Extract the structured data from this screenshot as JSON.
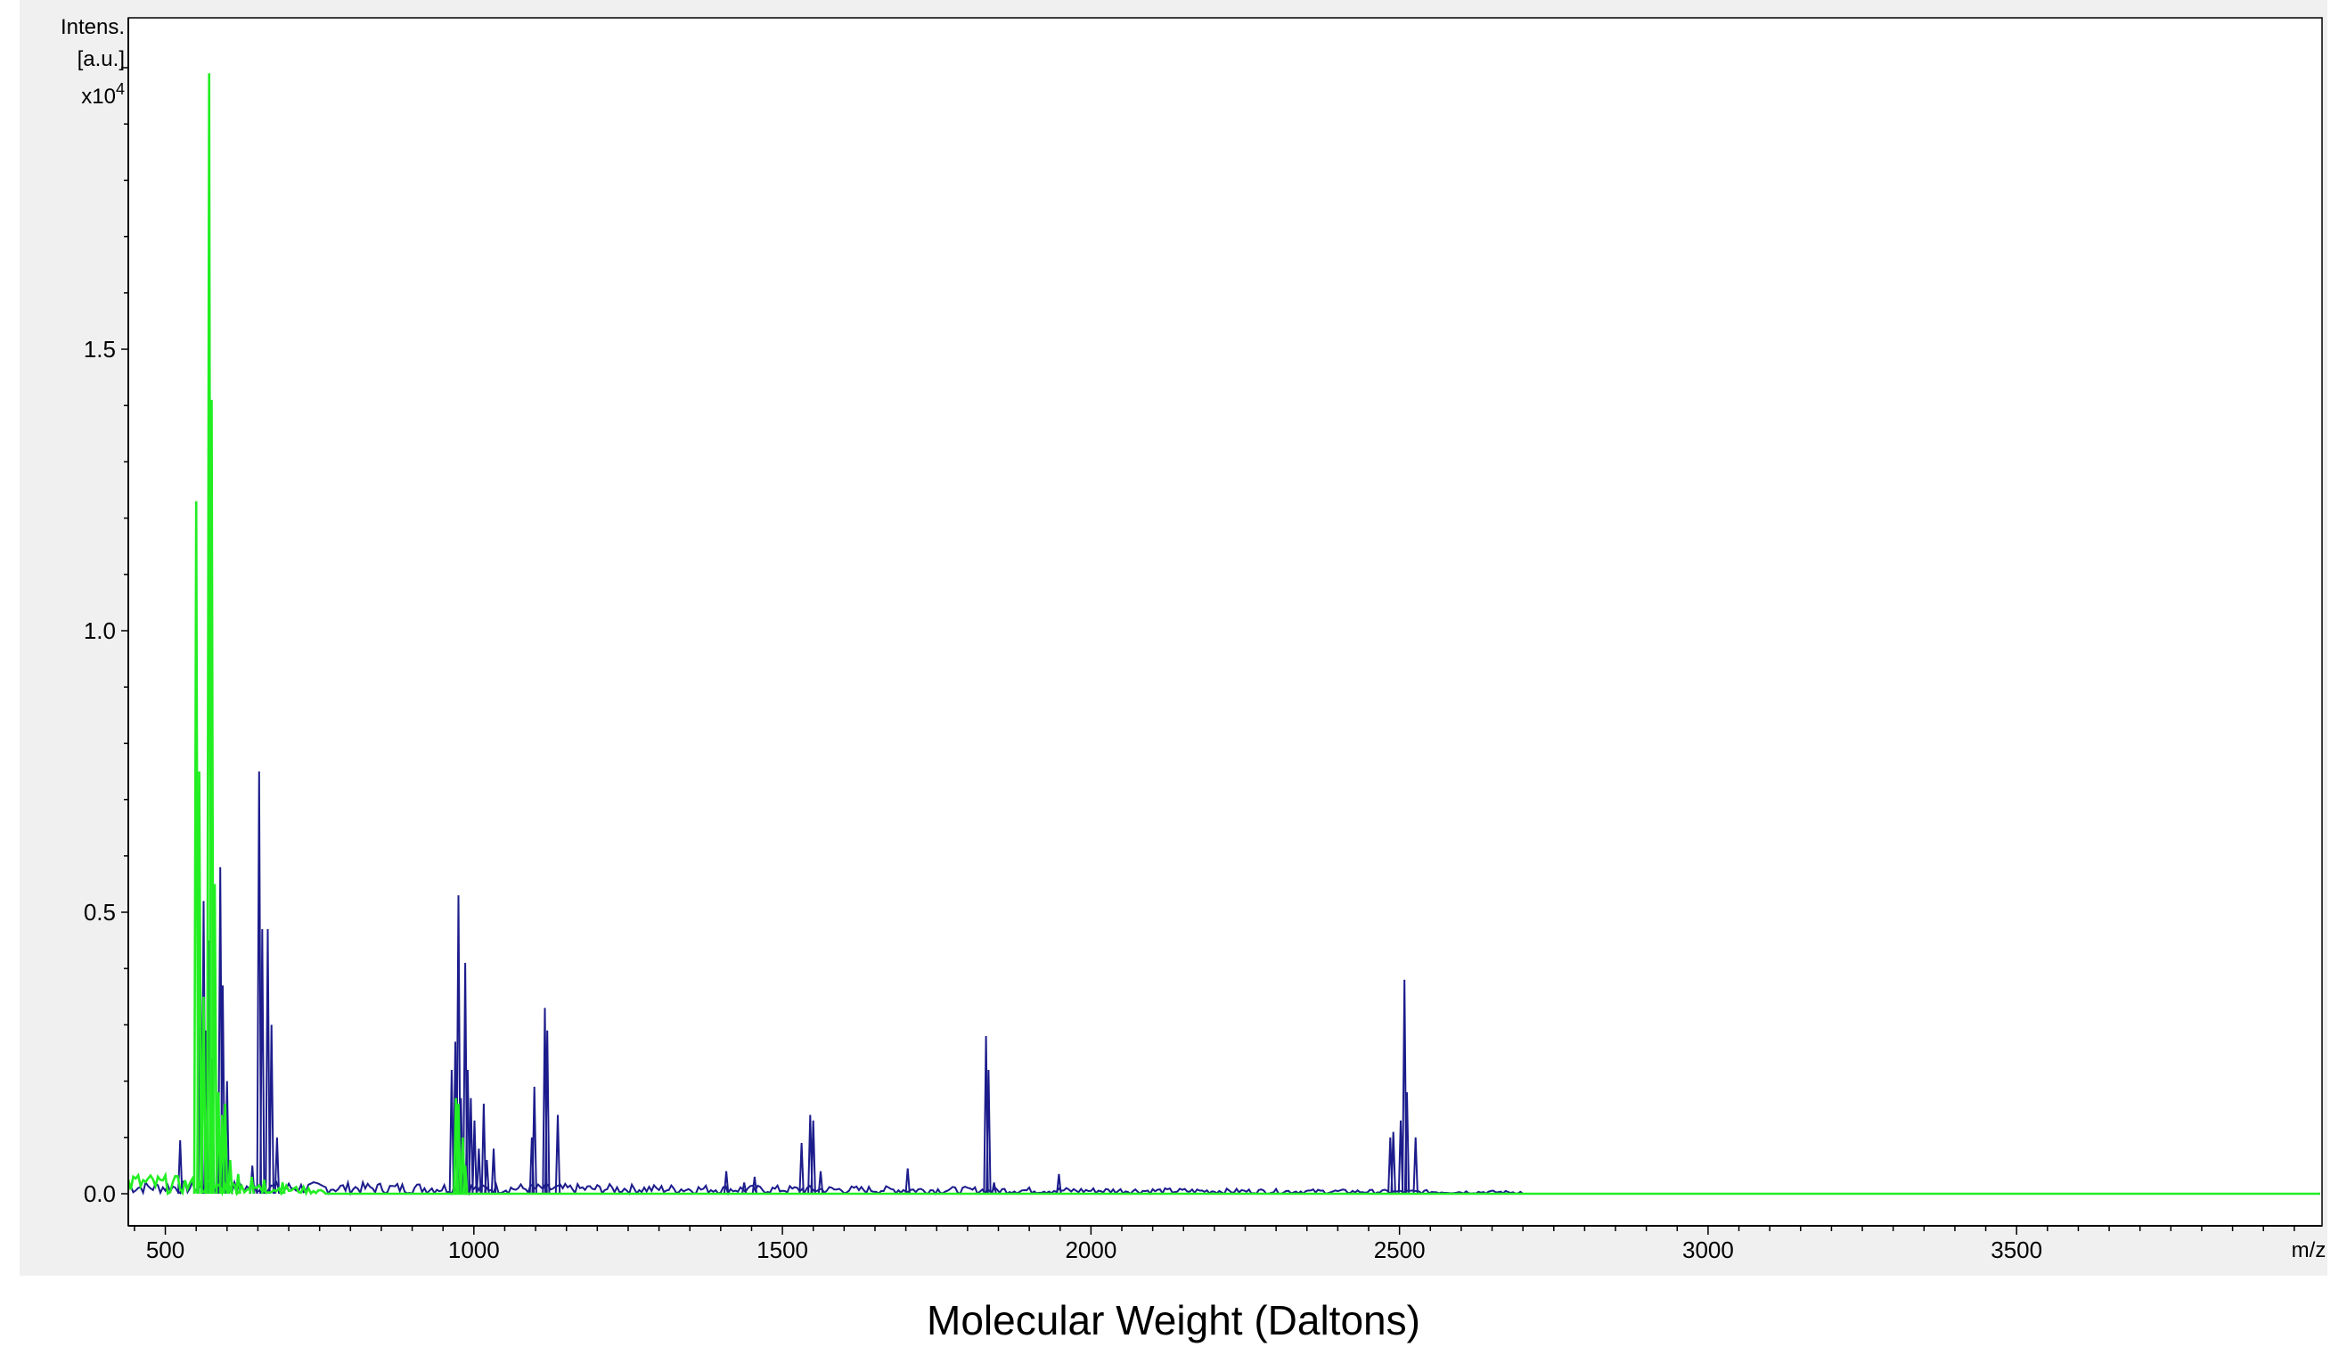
{
  "caption": "Molecular Weight (Daltons)",
  "chart_data": {
    "type": "line",
    "ylabel_lines": [
      "Intens.",
      "[a.u.]"
    ],
    "y_multiplier_base": "x10",
    "y_multiplier_exp": "4",
    "xlabel": "m/z",
    "xlim": [
      440,
      3995
    ],
    "ylim": [
      0,
      2.0
    ],
    "x_ticks": [
      500,
      1000,
      1500,
      2000,
      2500,
      3000,
      3500
    ],
    "y_ticks": [
      0.0,
      0.5,
      1.0,
      1.5
    ],
    "y_tick_labels": [
      "0.0",
      "0.5",
      "1.0",
      "1.5"
    ],
    "grid": false,
    "colors": {
      "series_blue": "#1c1c8c",
      "series_green": "#22ee22",
      "axis": "#000000",
      "background": "#ffffff",
      "panel": "#f0f0f0"
    },
    "series": [
      {
        "key": "blue",
        "color": "#1c1c8c",
        "peaks": [
          [
            524,
            0.095
          ],
          [
            557,
            0.37
          ],
          [
            562,
            0.52
          ],
          [
            566,
            0.29
          ],
          [
            570,
            0.45
          ],
          [
            576,
            0.24
          ],
          [
            589,
            0.58
          ],
          [
            593,
            0.37
          ],
          [
            600,
            0.2
          ],
          [
            641,
            0.05
          ],
          [
            652,
            0.75
          ],
          [
            657,
            0.47
          ],
          [
            666,
            0.47
          ],
          [
            672,
            0.3
          ],
          [
            681,
            0.1
          ],
          [
            964,
            0.22
          ],
          [
            970,
            0.27
          ],
          [
            975,
            0.53
          ],
          [
            979,
            0.17
          ],
          [
            986,
            0.41
          ],
          [
            990,
            0.22
          ],
          [
            995,
            0.17
          ],
          [
            1001,
            0.13
          ],
          [
            1008,
            0.08
          ],
          [
            1016,
            0.16
          ],
          [
            1021,
            0.06
          ],
          [
            1032,
            0.08
          ],
          [
            1094,
            0.1
          ],
          [
            1098,
            0.19
          ],
          [
            1115,
            0.33
          ],
          [
            1119,
            0.29
          ],
          [
            1136,
            0.14
          ],
          [
            1409,
            0.04
          ],
          [
            1438,
            0.02
          ],
          [
            1455,
            0.03
          ],
          [
            1531,
            0.09
          ],
          [
            1545,
            0.14
          ],
          [
            1550,
            0.13
          ],
          [
            1562,
            0.04
          ],
          [
            1703,
            0.045
          ],
          [
            1830,
            0.28
          ],
          [
            1834,
            0.22
          ],
          [
            1843,
            0.02
          ],
          [
            1948,
            0.035
          ],
          [
            2485,
            0.1
          ],
          [
            2490,
            0.11
          ],
          [
            2502,
            0.13
          ],
          [
            2508,
            0.38
          ],
          [
            2512,
            0.18
          ],
          [
            2526,
            0.1
          ]
        ]
      },
      {
        "key": "green",
        "color": "#22ee22",
        "peaks": [
          [
            550,
            1.23
          ],
          [
            555,
            0.75
          ],
          [
            562,
            0.35
          ],
          [
            571,
            1.99
          ],
          [
            575,
            1.41
          ],
          [
            580,
            0.55
          ],
          [
            586,
            0.18
          ],
          [
            592,
            0.14
          ],
          [
            597,
            0.16
          ],
          [
            605,
            0.06
          ],
          [
            618,
            0.035
          ],
          [
            640,
            0.03
          ],
          [
            660,
            0.025
          ],
          [
            690,
            0.02
          ],
          [
            971,
            0.17
          ],
          [
            975,
            0.16
          ],
          [
            982,
            0.1
          ],
          [
            986,
            0.05
          ]
        ]
      }
    ]
  }
}
